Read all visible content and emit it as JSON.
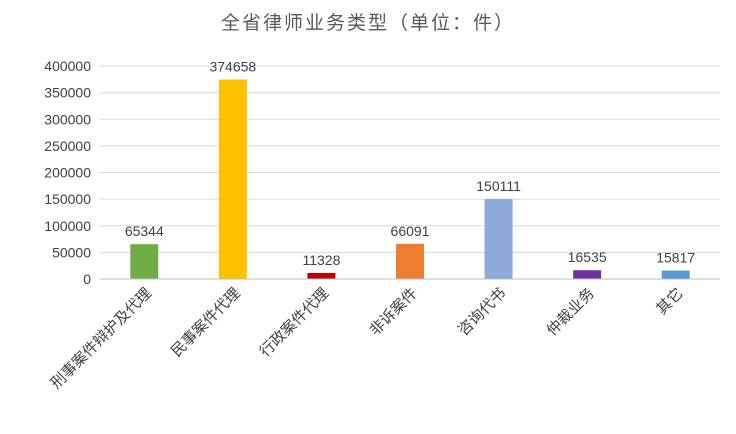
{
  "chart_data": {
    "type": "bar",
    "title": "全省律师业务类型（单位：件）",
    "xlabel": "",
    "ylabel": "",
    "categories": [
      "刑事案件辩护及代理",
      "民事案件代理",
      "行政案件代理",
      "非诉案件",
      "咨询代书",
      "仲裁业务",
      "其它"
    ],
    "values": [
      65344,
      374658,
      11328,
      66091,
      150111,
      16535,
      15817
    ],
    "colors": [
      "#70AD47",
      "#FFC000",
      "#C00000",
      "#ED7D31",
      "#8EA9DB",
      "#7030A0",
      "#5B9BD5"
    ],
    "ylim": [
      0,
      400000
    ],
    "yticks": [
      0,
      50000,
      100000,
      150000,
      200000,
      250000,
      300000,
      350000,
      400000
    ],
    "grid": true,
    "legend": "none"
  }
}
